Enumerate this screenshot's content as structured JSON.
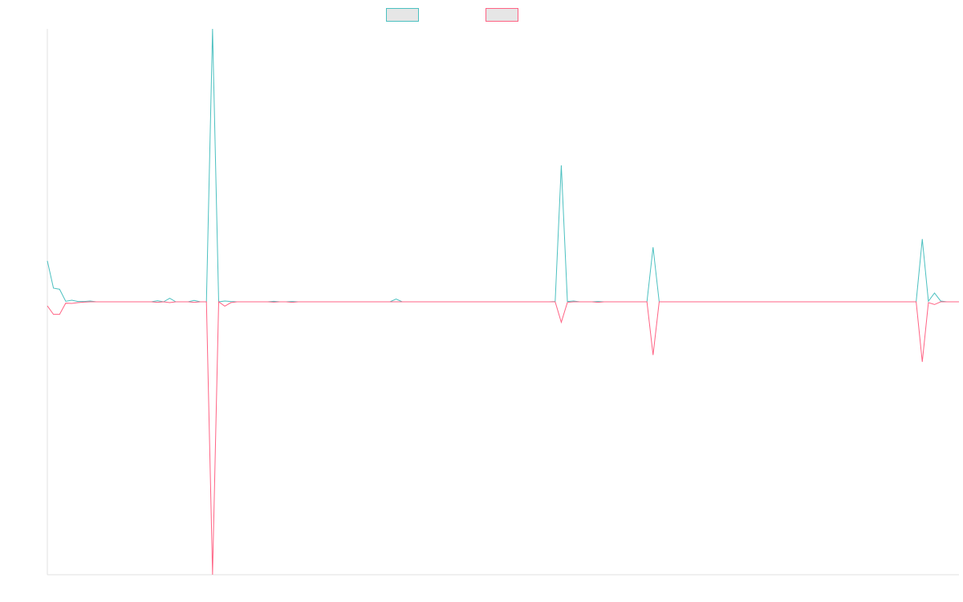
{
  "chart_data": {
    "type": "line",
    "title": "",
    "xlabel": "",
    "ylabel": "",
    "grid": false,
    "legend_placement": "top-center",
    "x_count": 150,
    "ylim": [
      -100,
      100
    ],
    "series": [
      {
        "color": "#4bc0c0",
        "points": [
          [
            0,
            15
          ],
          [
            1,
            5
          ],
          [
            2,
            4.5
          ],
          [
            3,
            0
          ],
          [
            4,
            0.5
          ],
          [
            5,
            0
          ],
          [
            6,
            0
          ],
          [
            7,
            0.3
          ],
          [
            8,
            0
          ],
          [
            17,
            0
          ],
          [
            18,
            0.4
          ],
          [
            19,
            0
          ],
          [
            20,
            1.5
          ],
          [
            21,
            0
          ],
          [
            24,
            0
          ],
          [
            25,
            0.8
          ],
          [
            26,
            0
          ],
          [
            27,
            0
          ],
          [
            28,
            0
          ],
          [
            29,
            0
          ],
          [
            30,
            0
          ],
          [
            31,
            0
          ],
          [
            32,
            0
          ],
          [
            33,
            0
          ],
          [
            34,
            0
          ],
          [
            35,
            0
          ],
          [
            39,
            0
          ],
          [
            40,
            0
          ],
          [
            41,
            0
          ],
          [
            42,
            0
          ],
          [
            43,
            0
          ],
          [
            44,
            0
          ],
          [
            45,
            0
          ],
          [
            46,
            0
          ],
          [
            47,
            0
          ],
          [
            48,
            0
          ],
          [
            49,
            0
          ],
          [
            26,
            0
          ],
          [
            27,
            100
          ],
          [
            28,
            0
          ],
          [
            28,
            0
          ],
          [
            29,
            0.5
          ],
          [
            30,
            0
          ],
          [
            31,
            0
          ],
          [
            38,
            0
          ],
          [
            44,
            0
          ],
          [
            49,
            0
          ]
        ]
      },
      {
        "color": "#ff6384",
        "points": []
      }
    ]
  }
}
